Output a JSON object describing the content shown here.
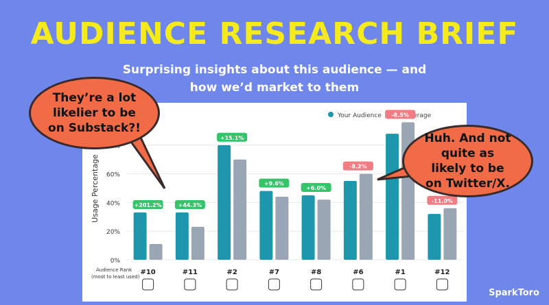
{
  "header": {
    "title": "AUDIENCE RESEARCH BRIEF",
    "subtitle_line1": "Surprising insights about this audience — and",
    "subtitle_line2": "how we’d market to them"
  },
  "callouts": {
    "left": "They’re a lot likelier to be on Substack?!",
    "right": "Huh. And not quite as likely to be on Twitter/X."
  },
  "brand": "SparkToro",
  "colors": {
    "background": "#6f86ea",
    "title": "#f4ea1c",
    "your_audience": "#1e97ad",
    "us_average": "#9ba6b4",
    "positive_badge": "#35c46a",
    "negative_badge": "#f17c83",
    "bubble": "#f26b47"
  },
  "chart_data": {
    "type": "bar",
    "categories": [
      "#10",
      "#11",
      "#2",
      "#7",
      "#8",
      "#6",
      "#1",
      "#12"
    ],
    "icons": [
      "slack-icon",
      "substack-icon",
      "linkedin-icon",
      "github-icon",
      "medium-icon",
      "x-icon",
      "youtube-icon",
      "whatsapp-icon"
    ],
    "series": [
      {
        "name": "Your Audience",
        "values": [
          33,
          33,
          80,
          48,
          45,
          55,
          88,
          32
        ]
      },
      {
        "name": "US Average",
        "values": [
          11,
          23,
          70,
          44,
          42,
          60,
          96,
          36
        ]
      }
    ],
    "badges": [
      "+201.2%",
      "+44.3%",
      "+15.1%",
      "+9.6%",
      "+6.0%",
      "-8.2%",
      "-8.5%",
      "-11.0%"
    ],
    "ylabel": "Usage Percentage",
    "rank_label_line1": "Audience Rank",
    "rank_label_line2": "(most to least used)",
    "yticks": [
      "0%",
      "20%",
      "40%",
      "60%",
      "80%"
    ],
    "ylim": [
      0,
      100
    ],
    "legend_position": "top-right",
    "grid": true
  }
}
